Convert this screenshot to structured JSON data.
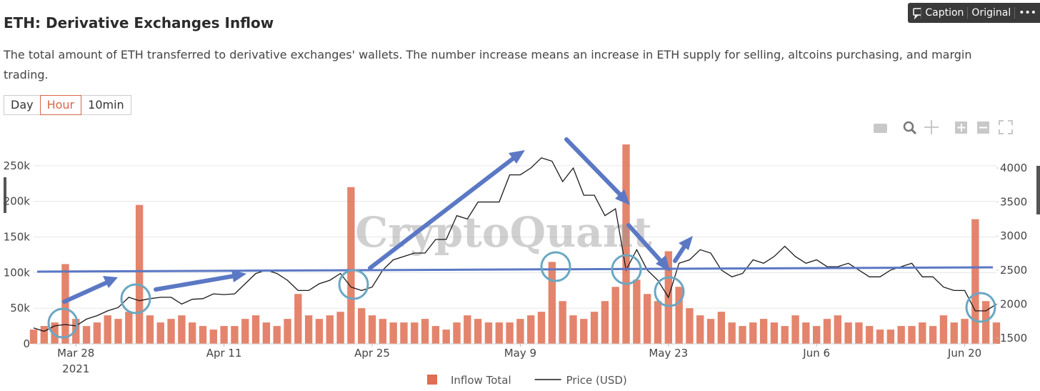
{
  "header": {
    "title": "ETH: Derivative Exchanges Inflow",
    "description": "The total amount of ETH transferred to derivative exchanges' wallets. The number increase means an increase in ETH supply for selling, altcoins purchasing, and margin trading."
  },
  "controls": {
    "intervals": [
      "Day",
      "Hour",
      "10min"
    ],
    "active": 1,
    "caption_button": "Caption",
    "original_button": "Original",
    "more_button": "•••"
  },
  "watermark": "CryptoQuant",
  "chart_data": {
    "type": "bar-line",
    "x": [
      "2021-03-24",
      "2021-03-25",
      "2021-03-26",
      "2021-03-27",
      "2021-03-28",
      "2021-03-29",
      "2021-03-30",
      "2021-03-31",
      "2021-04-01",
      "2021-04-02",
      "2021-04-03",
      "2021-04-04",
      "2021-04-05",
      "2021-04-06",
      "2021-04-07",
      "2021-04-08",
      "2021-04-09",
      "2021-04-10",
      "2021-04-11",
      "2021-04-12",
      "2021-04-13",
      "2021-04-14",
      "2021-04-15",
      "2021-04-16",
      "2021-04-17",
      "2021-04-18",
      "2021-04-19",
      "2021-04-20",
      "2021-04-21",
      "2021-04-22",
      "2021-04-23",
      "2021-04-24",
      "2021-04-25",
      "2021-04-26",
      "2021-04-27",
      "2021-04-28",
      "2021-04-29",
      "2021-04-30",
      "2021-05-01",
      "2021-05-02",
      "2021-05-03",
      "2021-05-04",
      "2021-05-05",
      "2021-05-06",
      "2021-05-07",
      "2021-05-08",
      "2021-05-09",
      "2021-05-10",
      "2021-05-11",
      "2021-05-12",
      "2021-05-13",
      "2021-05-14",
      "2021-05-15",
      "2021-05-16",
      "2021-05-17",
      "2021-05-18",
      "2021-05-19",
      "2021-05-20",
      "2021-05-21",
      "2021-05-22",
      "2021-05-23",
      "2021-05-24",
      "2021-05-25",
      "2021-05-26",
      "2021-05-27",
      "2021-05-28",
      "2021-05-29",
      "2021-05-30",
      "2021-05-31",
      "2021-06-01",
      "2021-06-02",
      "2021-06-03",
      "2021-06-04",
      "2021-06-05",
      "2021-06-06",
      "2021-06-07",
      "2021-06-08",
      "2021-06-09",
      "2021-06-10",
      "2021-06-11",
      "2021-06-12",
      "2021-06-13",
      "2021-06-14",
      "2021-06-15",
      "2021-06-16",
      "2021-06-17",
      "2021-06-18",
      "2021-06-19",
      "2021-06-20",
      "2021-06-21",
      "2021-06-22",
      "2021-06-23"
    ],
    "series": [
      {
        "name": "Inflow Total",
        "color": "#df6e52",
        "values": [
          20000,
          25000,
          30000,
          112000,
          35000,
          25000,
          30000,
          40000,
          35000,
          45000,
          195000,
          40000,
          30000,
          35000,
          40000,
          30000,
          25000,
          20000,
          25000,
          25000,
          35000,
          40000,
          30000,
          25000,
          35000,
          70000,
          40000,
          35000,
          40000,
          45000,
          220000,
          50000,
          40000,
          35000,
          30000,
          30000,
          30000,
          35000,
          25000,
          20000,
          30000,
          40000,
          35000,
          30000,
          30000,
          30000,
          35000,
          40000,
          45000,
          115000,
          60000,
          40000,
          35000,
          45000,
          60000,
          80000,
          280000,
          90000,
          70000,
          60000,
          130000,
          80000,
          50000,
          40000,
          35000,
          45000,
          30000,
          25000,
          30000,
          35000,
          30000,
          25000,
          40000,
          30000,
          25000,
          35000,
          40000,
          30000,
          30000,
          25000,
          20000,
          20000,
          25000,
          25000,
          30000,
          25000,
          40000,
          30000,
          35000,
          175000,
          60000,
          30000
        ]
      },
      {
        "name": "Price (USD)",
        "color": "#1a1a1a",
        "axis": "y2",
        "values": [
          1650,
          1600,
          1680,
          1700,
          1680,
          1780,
          1830,
          1900,
          1950,
          2100,
          2050,
          2080,
          2100,
          2100,
          2000,
          2070,
          2080,
          2150,
          2140,
          2150,
          2300,
          2450,
          2500,
          2450,
          2350,
          2200,
          2200,
          2300,
          2350,
          2450,
          2250,
          2200,
          2250,
          2500,
          2650,
          2700,
          2750,
          2750,
          2950,
          2950,
          3300,
          3250,
          3500,
          3500,
          3500,
          3900,
          3900,
          4000,
          4150,
          4100,
          3800,
          4000,
          3600,
          3600,
          3300,
          3400,
          2500,
          2800,
          2500,
          2350,
          2100,
          2600,
          2650,
          2800,
          2750,
          2500,
          2400,
          2450,
          2650,
          2600,
          2700,
          2850,
          2700,
          2600,
          2650,
          2550,
          2550,
          2600,
          2500,
          2400,
          2400,
          2500,
          2550,
          2600,
          2400,
          2400,
          2250,
          2200,
          2200,
          1900,
          1900,
          2000
        ]
      }
    ],
    "xlim": [
      "2021-03-24",
      "2021-06-23"
    ],
    "xticks": [
      {
        "value": "2021-03-28",
        "label": "Mar 28"
      },
      {
        "value": "2021-04-11",
        "label": "Apr 11"
      },
      {
        "value": "2021-04-25",
        "label": "Apr 25"
      },
      {
        "value": "2021-05-09",
        "label": "May 9"
      },
      {
        "value": "2021-05-23",
        "label": "May 23"
      },
      {
        "value": "2021-06-06",
        "label": "Jun 6"
      },
      {
        "value": "2021-06-20",
        "label": "Jun 20"
      }
    ],
    "x_year_label": "2021",
    "ylim": [
      0,
      270000
    ],
    "yticks": [
      0,
      {
        "value": 50000,
        "label": "50k"
      },
      {
        "value": 100000,
        "label": "100k"
      },
      {
        "value": 150000,
        "label": "150k"
      },
      {
        "value": 200000,
        "label": "200k"
      },
      {
        "value": 250000,
        "label": "250k"
      }
    ],
    "y2lim": [
      1416,
      4242
    ],
    "y2ticks": [
      1500,
      2000,
      2500,
      3000,
      3500,
      4000
    ],
    "grid": true,
    "legend": "bottom"
  }
}
